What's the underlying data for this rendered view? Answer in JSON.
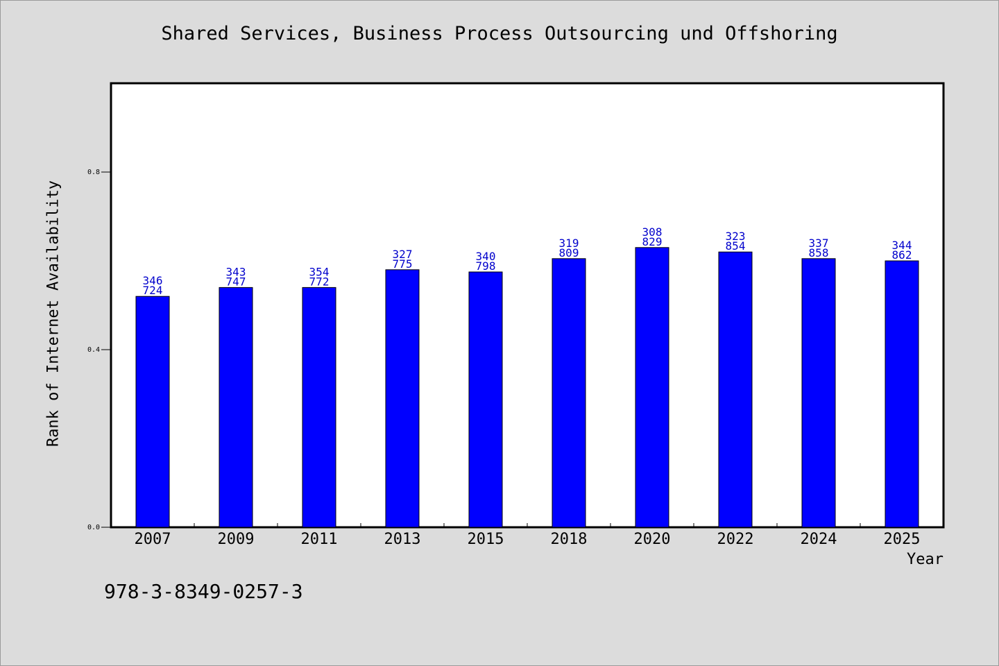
{
  "footer": {
    "code": "978-3-8349-0257-3"
  },
  "chart_data": {
    "type": "bar",
    "title": "Shared Services, Business Process Outsourcing und Offshoring",
    "xlabel": "Year",
    "ylabel": "Rank of Internet Availability",
    "categories": [
      "2007",
      "2009",
      "2011",
      "2013",
      "2015",
      "2018",
      "2020",
      "2022",
      "2024",
      "2025"
    ],
    "values": [
      0.52,
      0.54,
      0.54,
      0.58,
      0.575,
      0.605,
      0.63,
      0.62,
      0.605,
      0.6
    ],
    "data_labels": [
      [
        "346",
        "724"
      ],
      [
        "343",
        "747"
      ],
      [
        "354",
        "772"
      ],
      [
        "327",
        "775"
      ],
      [
        "340",
        "798"
      ],
      [
        "319",
        "809"
      ],
      [
        "308",
        "829"
      ],
      [
        "323",
        "854"
      ],
      [
        "337",
        "858"
      ],
      [
        "344",
        "862"
      ]
    ],
    "yticks": [
      "0.0",
      "0.4",
      "0.8"
    ],
    "ylim": [
      0,
      1.0
    ],
    "grid": false,
    "colors": {
      "bar": "#0000ff",
      "label": "#0000cc",
      "plot_bg": "#ffffff",
      "page_bg": "#dcdcdc"
    }
  }
}
